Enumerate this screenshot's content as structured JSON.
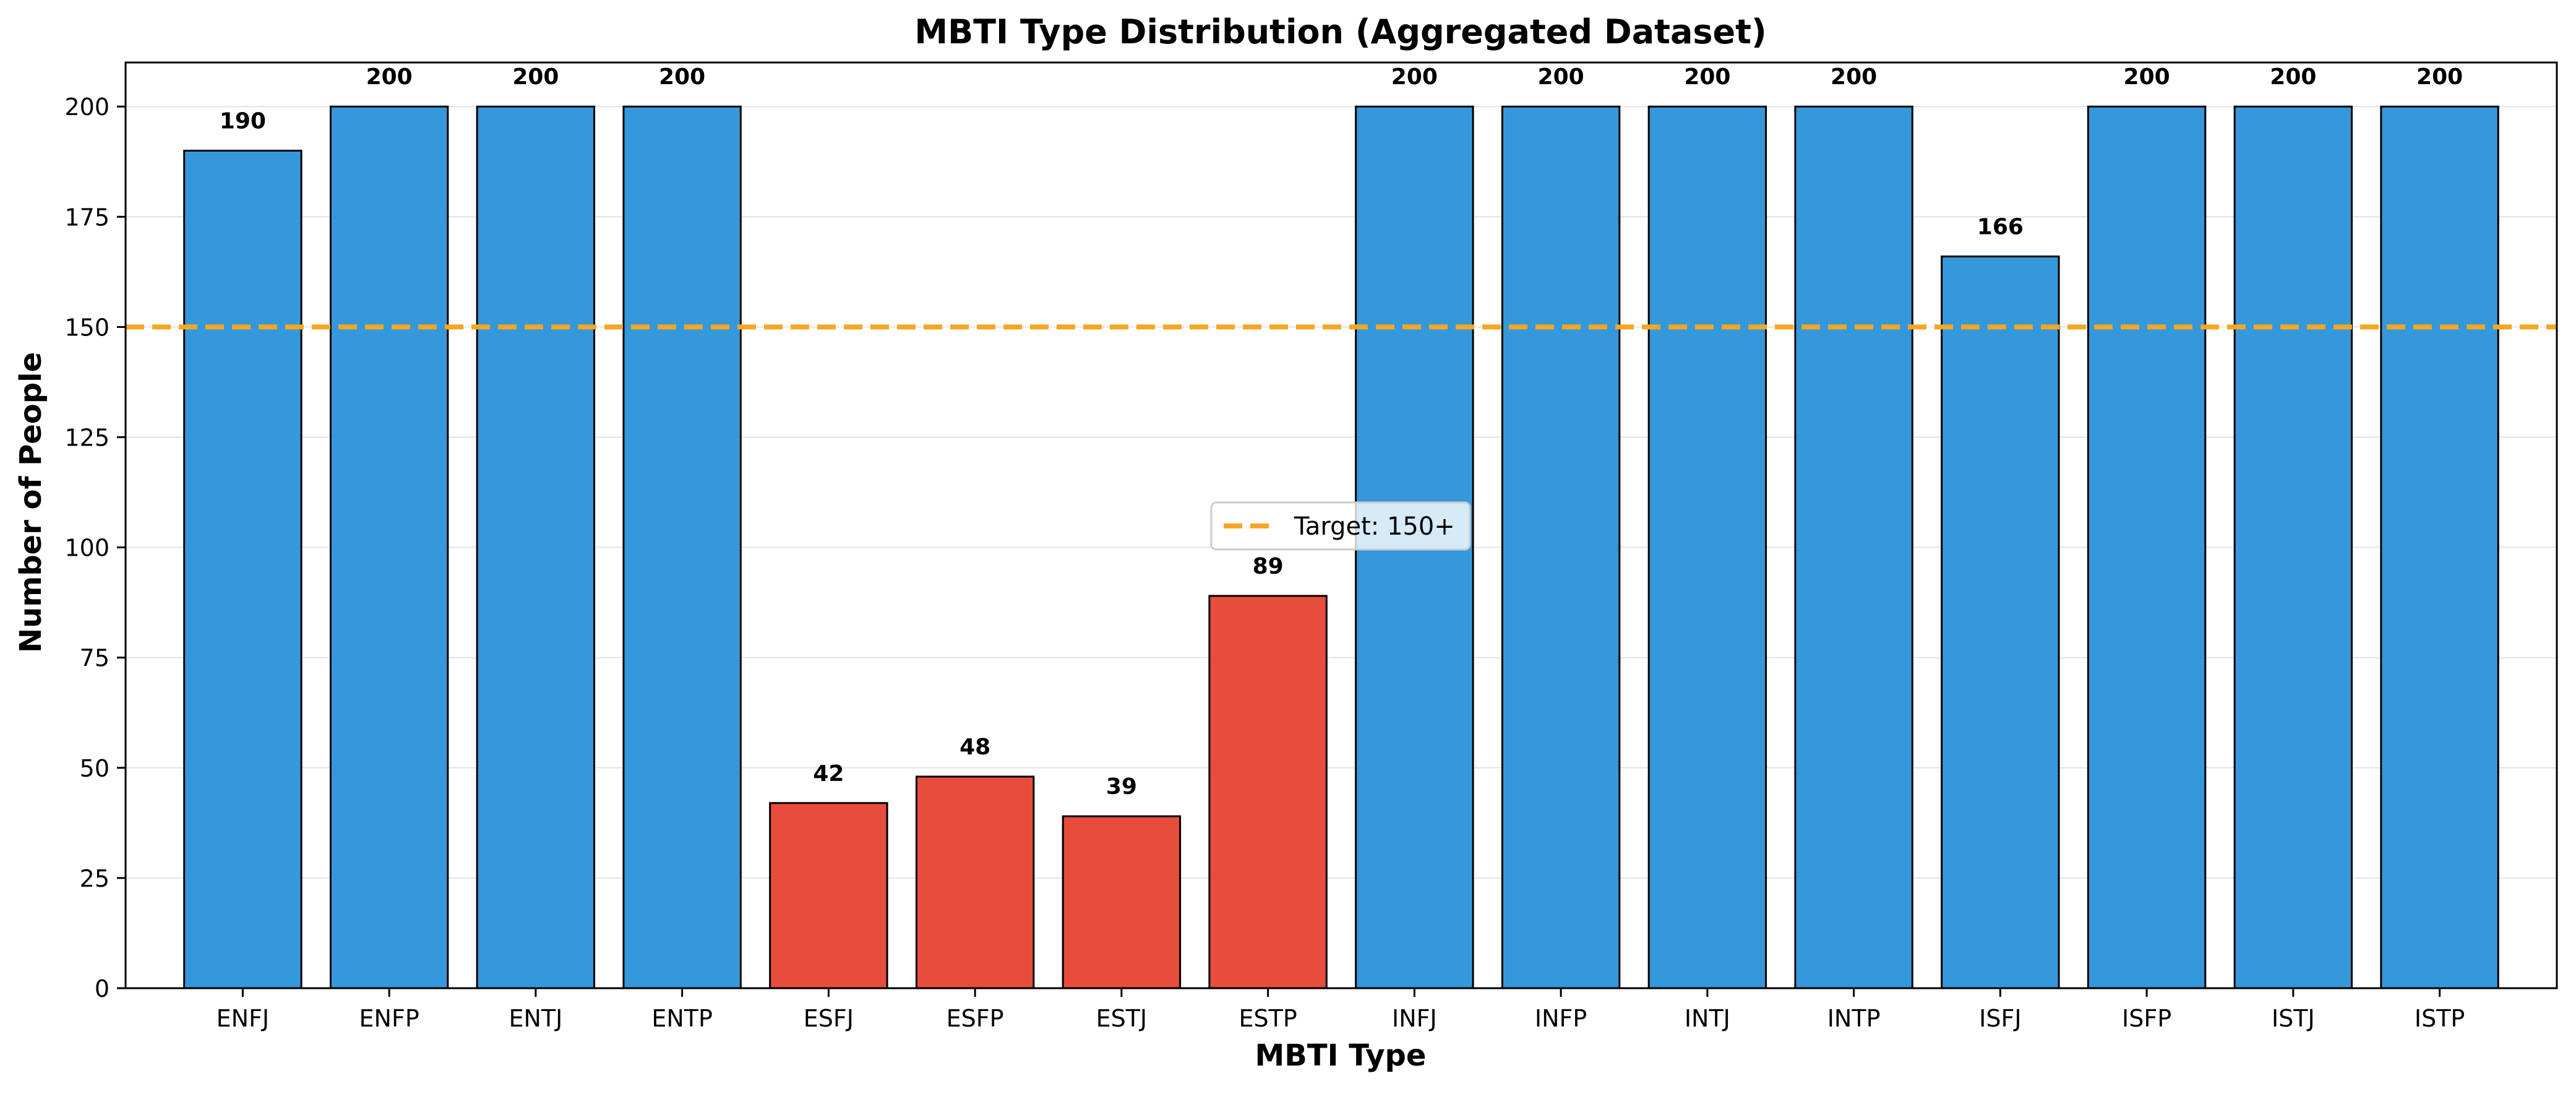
{
  "chart_data": {
    "type": "bar",
    "title": "MBTI Type Distribution (Aggregated Dataset)",
    "xlabel": "MBTI Type",
    "ylabel": "Number of People",
    "categories": [
      "ENFJ",
      "ENFP",
      "ENTJ",
      "ENTP",
      "ESFJ",
      "ESFP",
      "ESTJ",
      "ESTP",
      "INFJ",
      "INFP",
      "INTJ",
      "INTP",
      "ISFJ",
      "ISFP",
      "ISTJ",
      "ISTP"
    ],
    "values": [
      190,
      200,
      200,
      200,
      42,
      48,
      39,
      89,
      200,
      200,
      200,
      200,
      166,
      200,
      200,
      200
    ],
    "ylim": [
      0,
      210
    ],
    "yticks": [
      0,
      25,
      50,
      75,
      100,
      125,
      150,
      175,
      200
    ],
    "grid": "horizontal",
    "reference_line": {
      "value": 150,
      "label": "Target: 150+",
      "color": "#f5a623",
      "style": "dashed"
    },
    "legend": {
      "placement": "center",
      "entries": [
        "Target: 150+"
      ]
    },
    "colors": {
      "above_target": "#3498db",
      "below_target": "#e74c3c",
      "edge": "#000000",
      "grid": "#e3e3e3"
    }
  }
}
